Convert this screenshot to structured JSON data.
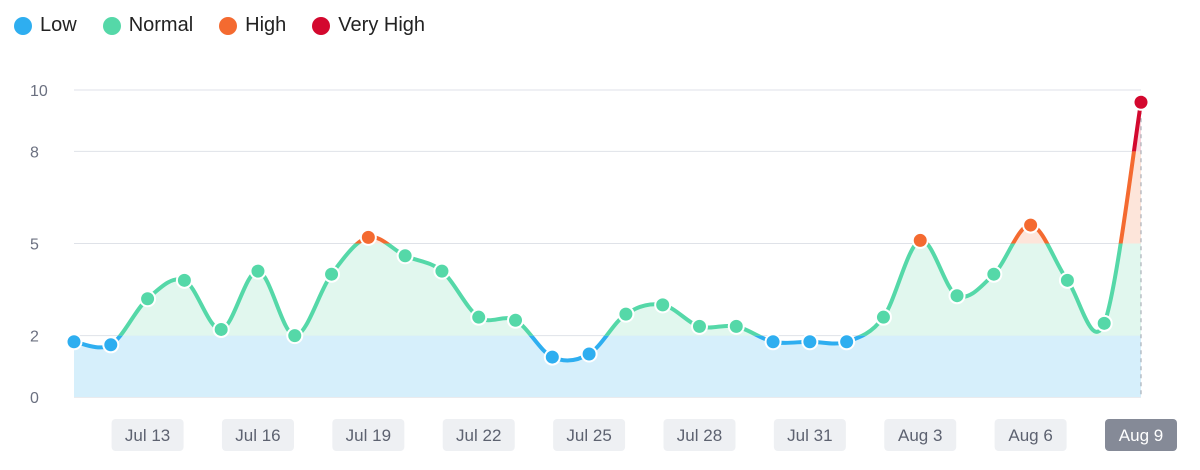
{
  "legend": [
    {
      "key": "low",
      "label": "Low",
      "color": "#2eaef0"
    },
    {
      "key": "normal",
      "label": "Normal",
      "color": "#55d8a8"
    },
    {
      "key": "high",
      "label": "High",
      "color": "#f46a30"
    },
    {
      "key": "very_high",
      "label": "Very High",
      "color": "#d3082e"
    }
  ],
  "chart_data": {
    "type": "line",
    "x": [
      "Jul 11",
      "Jul 12",
      "Jul 13",
      "Jul 14",
      "Jul 15",
      "Jul 16",
      "Jul 17",
      "Jul 18",
      "Jul 19",
      "Jul 20",
      "Jul 21",
      "Jul 22",
      "Jul 23",
      "Jul 24",
      "Jul 25",
      "Jul 26",
      "Jul 27",
      "Jul 28",
      "Jul 29",
      "Jul 30",
      "Jul 31",
      "Aug 1",
      "Aug 2",
      "Aug 3",
      "Aug 4",
      "Aug 5",
      "Aug 6",
      "Aug 7",
      "Aug 8",
      "Aug 9"
    ],
    "values": [
      1.8,
      1.7,
      3.2,
      3.8,
      2.2,
      4.1,
      2.0,
      4.0,
      5.2,
      4.6,
      4.1,
      2.6,
      2.5,
      1.3,
      1.4,
      2.7,
      3.0,
      2.3,
      2.3,
      1.8,
      1.8,
      1.8,
      2.6,
      5.1,
      3.3,
      4.0,
      5.6,
      3.8,
      2.4,
      9.6
    ],
    "bands": [
      {
        "name": "Low",
        "from": 0,
        "to": 2,
        "color": "#2eaef0",
        "fill": "#d6effb"
      },
      {
        "name": "Normal",
        "from": 2,
        "to": 5,
        "color": "#55d8a8",
        "fill": "#e1f7ee"
      },
      {
        "name": "High",
        "from": 5,
        "to": 8,
        "color": "#f46a30",
        "fill": "#fde5da"
      },
      {
        "name": "Very High",
        "from": 8,
        "to": 10,
        "color": "#d3082e",
        "fill": "#f8d3da"
      }
    ],
    "y_ticks": [
      0,
      2,
      5,
      8,
      10
    ],
    "ylim": [
      0,
      10
    ],
    "x_tick_labels": [
      "Jul 13",
      "Jul 16",
      "Jul 19",
      "Jul 22",
      "Jul 25",
      "Jul 28",
      "Jul 31",
      "Aug 3",
      "Aug 6",
      "Aug 9"
    ],
    "x_tick_indices": [
      2,
      5,
      8,
      11,
      14,
      17,
      20,
      23,
      26,
      29
    ],
    "highlighted_label": "Aug 9",
    "grid": true,
    "legend_position": "top-left"
  }
}
